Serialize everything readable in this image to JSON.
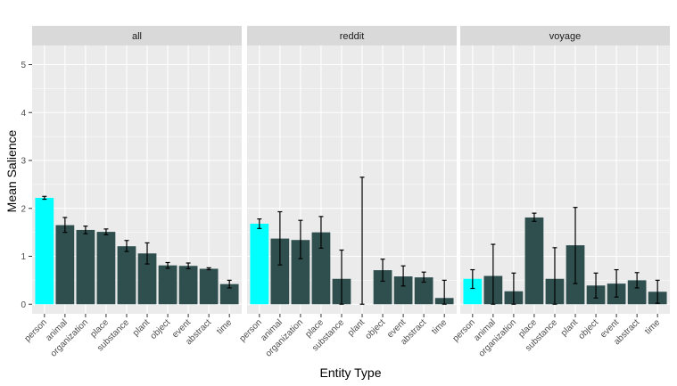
{
  "chart_data": {
    "type": "bar",
    "xlabel": "Entity Type",
    "ylabel": "Mean Salience",
    "ylim": [
      -0.2,
      5.4
    ],
    "yticks": [
      0,
      1,
      2,
      3,
      4,
      5
    ],
    "grid": true,
    "colors": {
      "highlight": "#00FFFF",
      "bar": "#2F4F4F",
      "error": "#000000",
      "panel": "#EBEBEB",
      "strip": "#D9D9D9",
      "grid": "#FFFFFF"
    },
    "panels": [
      {
        "title": "all",
        "categories": [
          "person",
          "animal",
          "organization",
          "place",
          "substance",
          "plant",
          "object",
          "event",
          "abstract",
          "time"
        ],
        "values": [
          2.22,
          1.65,
          1.55,
          1.51,
          1.21,
          1.06,
          0.81,
          0.8,
          0.74,
          0.42
        ],
        "err_low": [
          2.19,
          1.5,
          1.47,
          1.45,
          1.1,
          0.84,
          0.75,
          0.74,
          0.72,
          0.34
        ],
        "err_high": [
          2.25,
          1.81,
          1.63,
          1.57,
          1.33,
          1.28,
          0.87,
          0.86,
          0.76,
          0.5
        ]
      },
      {
        "title": "reddit",
        "categories": [
          "person",
          "animal",
          "organization",
          "place",
          "substance",
          "plant",
          "object",
          "event",
          "abstract",
          "time"
        ],
        "values": [
          1.68,
          1.37,
          1.34,
          1.5,
          0.53,
          0.0,
          0.71,
          0.58,
          0.56,
          0.13
        ],
        "err_low": [
          1.58,
          0.82,
          0.95,
          1.17,
          0.0,
          0.0,
          0.48,
          0.38,
          0.46,
          0.0
        ],
        "err_high": [
          1.78,
          1.93,
          1.75,
          1.83,
          1.13,
          2.65,
          0.94,
          0.8,
          0.67,
          0.5
        ]
      },
      {
        "title": "voyage",
        "categories": [
          "person",
          "animal",
          "organization",
          "place",
          "substance",
          "plant",
          "object",
          "event",
          "abstract",
          "time"
        ],
        "values": [
          0.53,
          0.59,
          0.27,
          1.81,
          0.53,
          1.23,
          0.39,
          0.43,
          0.5,
          0.26
        ],
        "err_low": [
          0.33,
          0.0,
          0.0,
          1.73,
          0.0,
          0.43,
          0.13,
          0.15,
          0.34,
          0.02
        ],
        "err_high": [
          0.72,
          1.25,
          0.65,
          1.9,
          1.18,
          2.02,
          0.65,
          0.72,
          0.66,
          0.5
        ]
      }
    ]
  }
}
